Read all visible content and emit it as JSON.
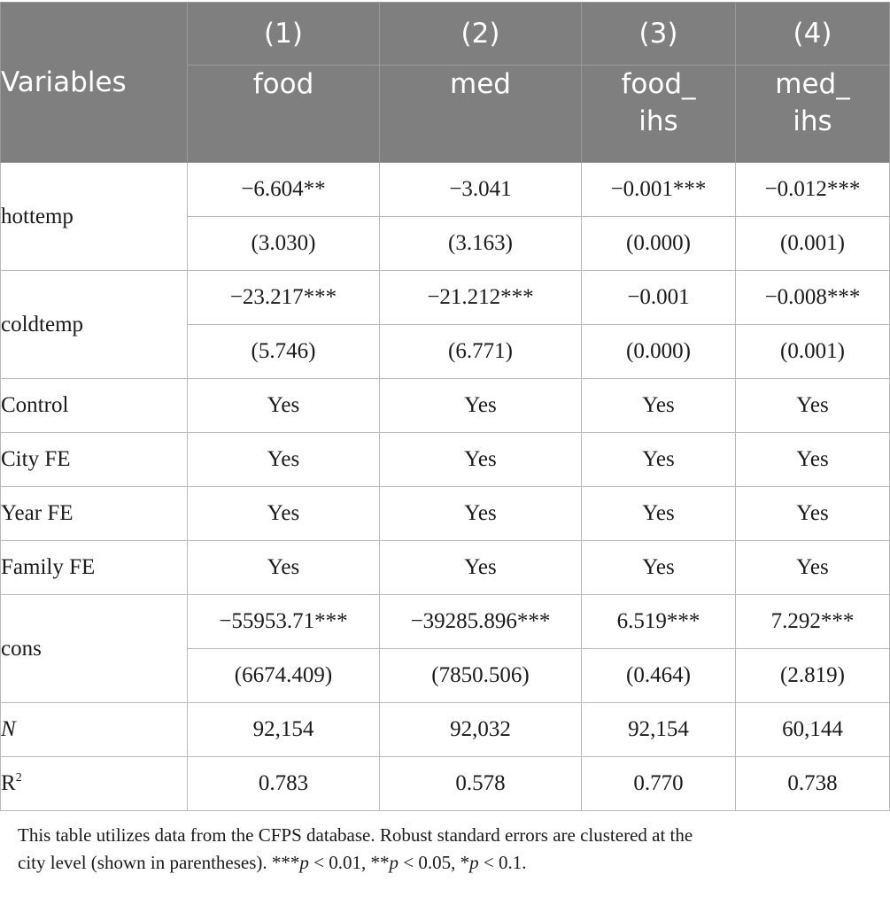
{
  "header": {
    "variables_label": "Variables",
    "columns": [
      {
        "num": "(1)",
        "dep_line1": "food",
        "dep_line2": ""
      },
      {
        "num": "(2)",
        "dep_line1": "med",
        "dep_line2": ""
      },
      {
        "num": "(3)",
        "dep_line1": "food_",
        "dep_line2": "ihs"
      },
      {
        "num": "(4)",
        "dep_line1": "med_",
        "dep_line2": "ihs"
      }
    ]
  },
  "rows": {
    "hottemp": {
      "label": "hottemp",
      "coef": [
        "−6.604**",
        "−3.041",
        "−0.001***",
        "−0.012***"
      ],
      "se": [
        "(3.030)",
        "(3.163)",
        "(0.000)",
        "(0.001)"
      ]
    },
    "coldtemp": {
      "label": "coldtemp",
      "coef": [
        "−23.217***",
        "−21.212***",
        "−0.001",
        "−0.008***"
      ],
      "se": [
        "(5.746)",
        "(6.771)",
        "(0.000)",
        "(0.001)"
      ]
    },
    "control": {
      "label": "Control",
      "values": [
        "Yes",
        "Yes",
        "Yes",
        "Yes"
      ]
    },
    "city_fe": {
      "label": "City FE",
      "values": [
        "Yes",
        "Yes",
        "Yes",
        "Yes"
      ]
    },
    "year_fe": {
      "label": "Year FE",
      "values": [
        "Yes",
        "Yes",
        "Yes",
        "Yes"
      ]
    },
    "family_fe": {
      "label": "Family FE",
      "values": [
        "Yes",
        "Yes",
        "Yes",
        "Yes"
      ]
    },
    "cons": {
      "label": "cons",
      "coef": [
        "−55953.71***",
        "−39285.896***",
        "6.519***",
        "7.292***"
      ],
      "se": [
        "(6674.409)",
        "(7850.506)",
        "(0.464)",
        "(2.819)"
      ]
    },
    "n": {
      "label": "N",
      "values": [
        "92,154",
        "92,032",
        "92,154",
        "60,144"
      ]
    },
    "r2": {
      "label_base": "R",
      "label_sup": "2",
      "values": [
        "0.783",
        "0.578",
        "0.770",
        "0.738"
      ]
    }
  },
  "note": {
    "line1": "This table utilizes data from the CFPS database. Robust standard errors are clustered at the",
    "line2_a": "city level (shown in parentheses). ***",
    "p": "p",
    "line2_b": " < 0.01, **",
    "line2_c": " < 0.05, *",
    "line2_d": " < 0.1."
  }
}
